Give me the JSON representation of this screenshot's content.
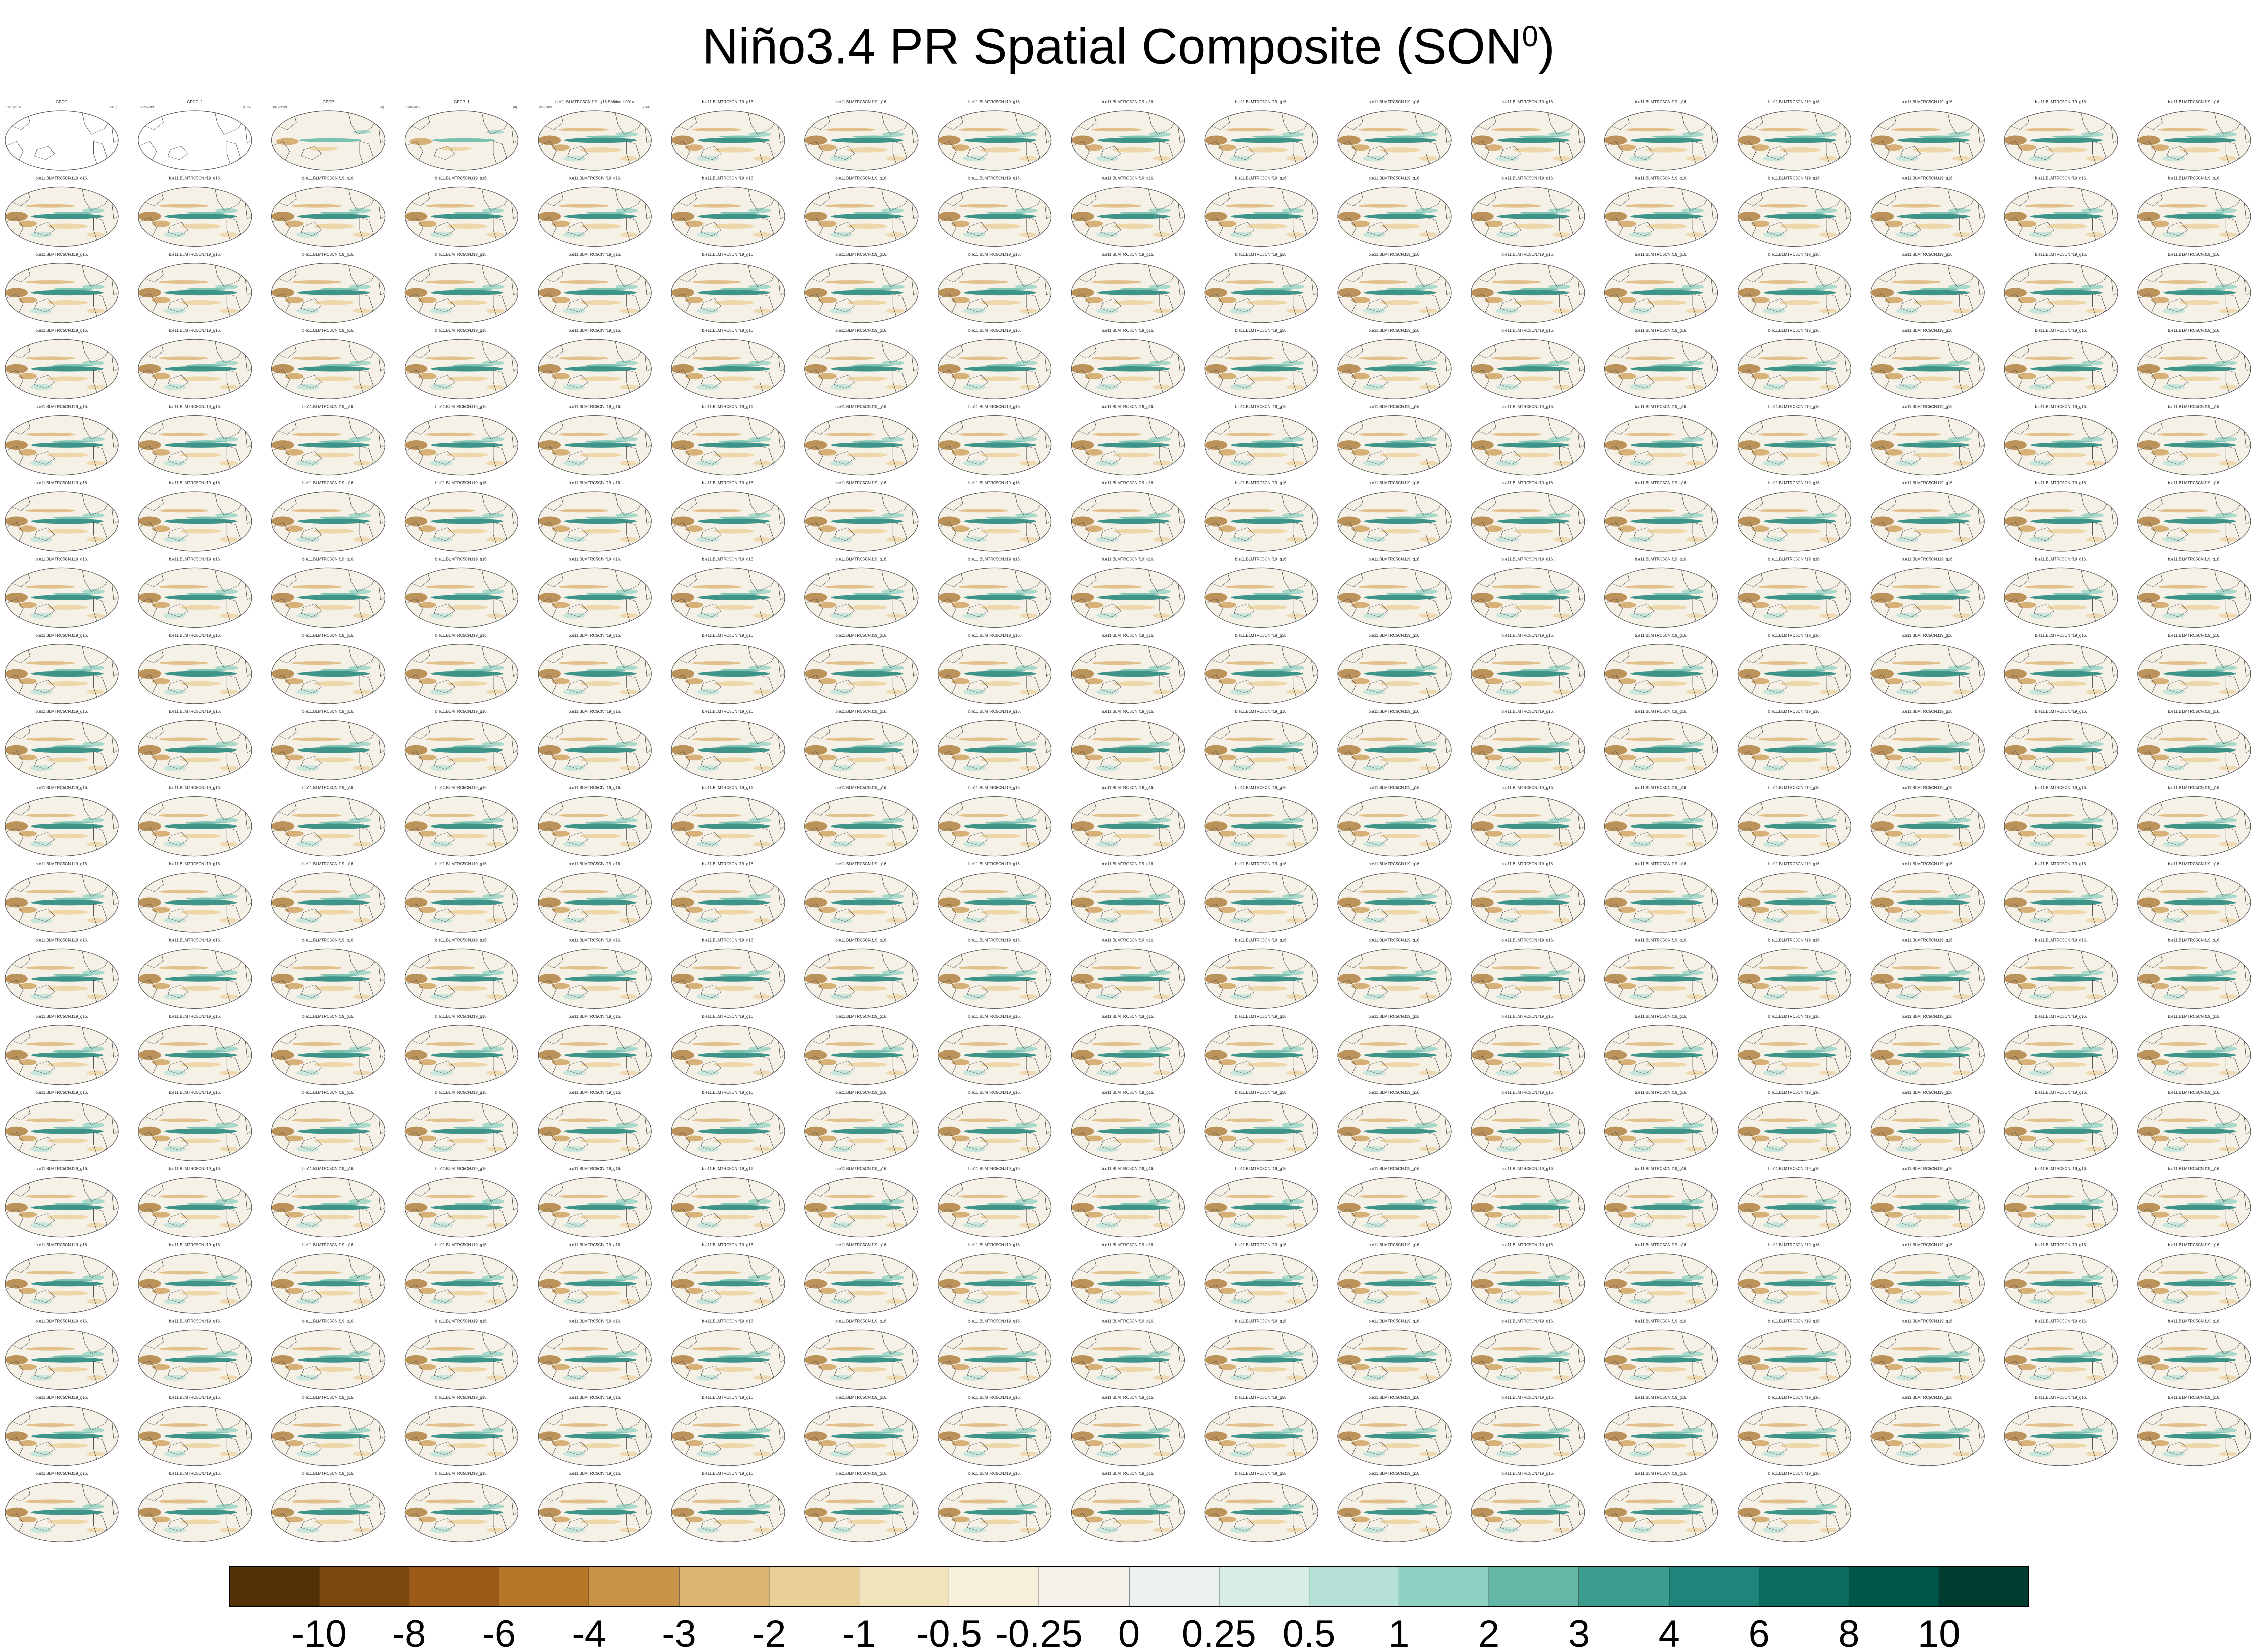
{
  "title": "Niño3.4 PR Spatial Composite (SON",
  "title_sup": "0",
  "title_end": ")",
  "chart_data": {
    "type": "heatmap",
    "title": "Niño3.4 PR Spatial Composite (SON0)",
    "layout": {
      "rows": 19,
      "cols": 17,
      "panels": 320
    },
    "panels": [
      {
        "label": "GPCC",
        "left": "1901-2019",
        "right": "(1/15)",
        "style": "empty"
      },
      {
        "label": "GPCC_1",
        "left": "1902-2019",
        "right": "(1/15)",
        "style": "empty"
      },
      {
        "label": "GPCP",
        "left": "1979-2019",
        "right": "(8)",
        "style": "obs"
      },
      {
        "label": "GPCP_1",
        "left": "1980-2019",
        "right": "(8)",
        "style": "obs"
      },
      {
        "label": "b.e11.BLMTRC5CN.f19_g16.SMbiomil.001a",
        "left": "850-1849",
        "right": "(161)",
        "style": "model"
      }
    ],
    "model_label_template": "b.e11.BLMTRC5CN.f19_g16.",
    "colorbar": {
      "tick_labels": [
        "-10",
        "-8",
        "-6",
        "-4",
        "-3",
        "-2",
        "-1",
        "-0.5",
        "-0.25",
        "0",
        "0.25",
        "0.5",
        "1",
        "2",
        "3",
        "4",
        "6",
        "8",
        "10"
      ],
      "colors": [
        "#543005",
        "#7b470e",
        "#9b5a17",
        "#b5782a",
        "#c99447",
        "#dcb474",
        "#ebcf98",
        "#f3e3bd",
        "#f6efd9",
        "#f5f2ec",
        "#eaf1ee",
        "#d8ece6",
        "#b6e1d8",
        "#8ed0c1",
        "#62b7a6",
        "#3b9d8d",
        "#1f8479",
        "#0b6c60",
        "#01564a",
        "#003c30"
      ]
    }
  }
}
